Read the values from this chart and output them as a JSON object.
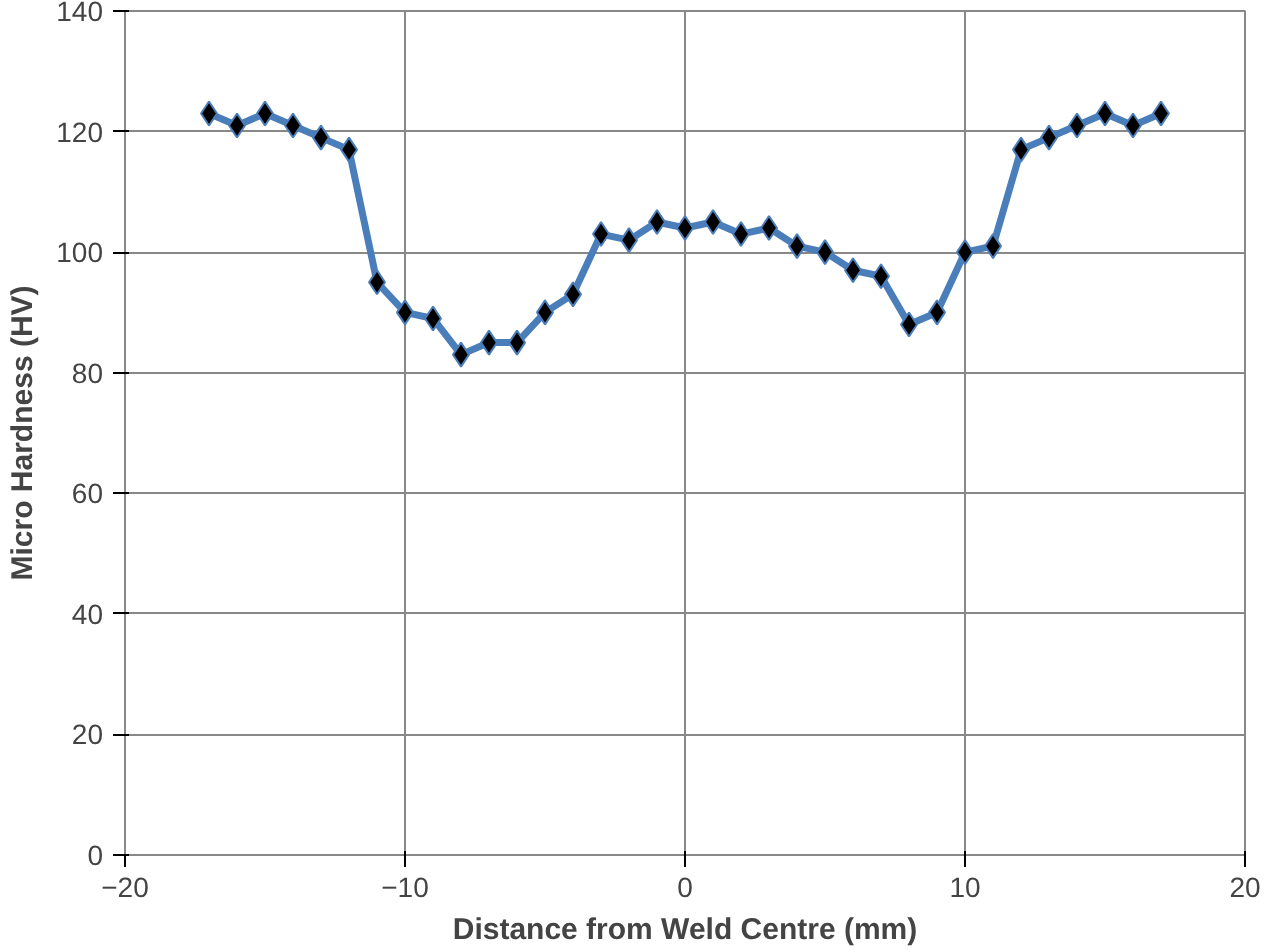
{
  "chart_data": {
    "type": "line",
    "xlabel": "Distance from Weld Centre (mm)",
    "ylabel": "Micro Hardness (HV)",
    "x": [
      -17,
      -16,
      -15,
      -14,
      -13,
      -12,
      -11,
      -10,
      -9,
      -8,
      -7,
      -6,
      -5,
      -4,
      -3,
      -2,
      -1,
      0,
      1,
      2,
      3,
      4,
      5,
      6,
      7,
      8,
      9,
      10,
      11,
      12,
      13,
      14,
      15,
      16,
      17
    ],
    "series": [
      {
        "color": "#4a7ebb",
        "values": [
          123,
          121,
          123,
          121,
          119,
          117,
          95,
          90,
          89,
          83,
          85,
          85,
          90,
          93,
          103,
          102,
          105,
          104,
          105,
          103,
          104,
          101,
          100,
          97,
          96,
          88,
          90,
          100,
          101,
          117,
          119,
          121,
          123,
          121,
          123
        ]
      }
    ],
    "xlim": [
      -20,
      20
    ],
    "xticks": [
      -20,
      -10,
      0,
      10,
      20
    ],
    "ylim": [
      0,
      140
    ],
    "yticks": [
      0,
      20,
      40,
      60,
      80,
      100,
      120,
      140
    ],
    "grid": true,
    "marker": "diamond",
    "line_style": "solid"
  }
}
